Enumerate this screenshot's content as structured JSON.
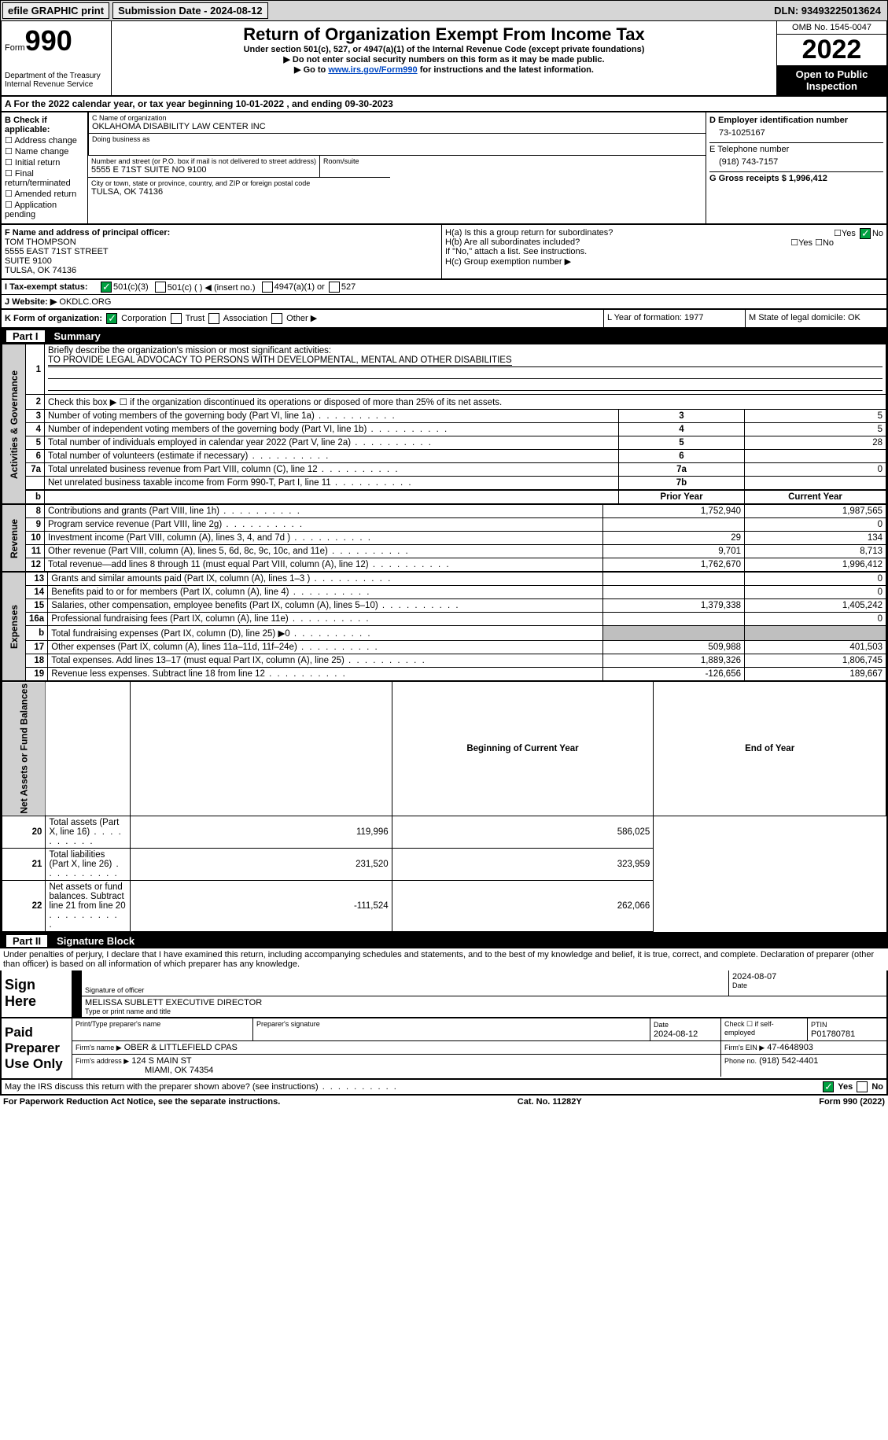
{
  "topbar": {
    "efile": "efile GRAPHIC print",
    "submission_label": "Submission Date - 2024-08-12",
    "dln_label": "DLN: 93493225013624"
  },
  "header": {
    "form_prefix": "Form",
    "form_num": "990",
    "dept": "Department of the Treasury Internal Revenue Service",
    "title": "Return of Organization Exempt From Income Tax",
    "sub": "Under section 501(c), 527, or 4947(a)(1) of the Internal Revenue Code (except private foundations)",
    "note1_pre": "▶ Do not enter social security numbers on this form as it may be made public.",
    "note2_pre": "▶ Go to ",
    "note2_link": "www.irs.gov/Form990",
    "note2_post": " for instructions and the latest information.",
    "omb": "OMB No. 1545-0047",
    "year": "2022",
    "otp": "Open to Public Inspection"
  },
  "rowA": "A For the 2022 calendar year, or tax year beginning 10-01-2022   , and ending 09-30-2023",
  "secB": {
    "hdr": "B Check if applicable:",
    "items": [
      "Address change",
      "Name change",
      "Initial return",
      "Final return/terminated",
      "Amended return",
      "Application pending"
    ],
    "c_name_label": "C Name of organization",
    "c_name": "OKLAHOMA DISABILITY LAW CENTER INC",
    "dba_label": "Doing business as",
    "addr_label": "Number and street (or P.O. box if mail is not delivered to street address)",
    "room_label": "Room/suite",
    "addr": "5555 E 71ST SUITE NO 9100",
    "city_label": "City or town, state or province, country, and ZIP or foreign postal code",
    "city": "TULSA, OK  74136",
    "d_label": "D Employer identification number",
    "d_val": "73-1025167",
    "e_label": "E Telephone number",
    "e_val": "(918) 743-7157",
    "g_label": "G Gross receipts $ 1,996,412"
  },
  "secF": {
    "f_label": "F  Name and address of principal officer:",
    "f_name": "TOM THOMPSON",
    "f_addr1": "5555 EAST 71ST STREET",
    "f_addr2": "SUITE 9100",
    "f_addr3": "TULSA, OK  74136",
    "ha": "H(a)  Is this a group return for subordinates?",
    "hb": "H(b)  Are all subordinates included?",
    "hnote": "If \"No,\" attach a list. See instructions.",
    "hc": "H(c)  Group exemption number ▶",
    "yes": "Yes",
    "no": "No"
  },
  "secI": {
    "label": "I    Tax-exempt status:",
    "o1": "501(c)(3)",
    "o2": "501(c) (  ) ◀ (insert no.)",
    "o3": "4947(a)(1) or",
    "o4": "527",
    "j_label": "J   Website: ▶",
    "j_val": "OKDLC.ORG"
  },
  "secK": {
    "k": "K Form of organization:",
    "corp": "Corporation",
    "trust": "Trust",
    "assoc": "Association",
    "other": "Other ▶",
    "l": "L Year of formation: 1977",
    "m": "M State of legal domicile: OK"
  },
  "part1": {
    "hdr_num": "Part I",
    "hdr": "Summary",
    "l1": "Briefly describe the organization's mission or most significant activities:",
    "l1a": "TO PROVIDE LEGAL ADVOCACY TO PERSONS WITH DEVELOPMENTAL, MENTAL AND OTHER DISABILITIES",
    "l2": "Check this box ▶ ☐  if the organization discontinued its operations or disposed of more than 25% of its net assets.",
    "sidebar_actgov": "Activities & Governance",
    "sidebar_rev": "Revenue",
    "sidebar_exp": "Expenses",
    "sidebar_net": "Net Assets or Fund Balances",
    "rows_ag": [
      {
        "n": "3",
        "d": "Number of voting members of the governing body (Part VI, line 1a)",
        "b": "3",
        "v": "5"
      },
      {
        "n": "4",
        "d": "Number of independent voting members of the governing body (Part VI, line 1b)",
        "b": "4",
        "v": "5"
      },
      {
        "n": "5",
        "d": "Total number of individuals employed in calendar year 2022 (Part V, line 2a)",
        "b": "5",
        "v": "28"
      },
      {
        "n": "6",
        "d": "Total number of volunteers (estimate if necessary)",
        "b": "6",
        "v": ""
      },
      {
        "n": "7a",
        "d": "Total unrelated business revenue from Part VIII, column (C), line 12",
        "b": "7a",
        "v": "0"
      },
      {
        "n": "",
        "d": "Net unrelated business taxable income from Form 990-T, Part I, line 11",
        "b": "7b",
        "v": ""
      }
    ],
    "prior_hdr": "Prior Year",
    "curr_hdr": "Current Year",
    "rows_rev": [
      {
        "n": "8",
        "d": "Contributions and grants (Part VIII, line 1h)",
        "p": "1,752,940",
        "c": "1,987,565"
      },
      {
        "n": "9",
        "d": "Program service revenue (Part VIII, line 2g)",
        "p": "",
        "c": "0"
      },
      {
        "n": "10",
        "d": "Investment income (Part VIII, column (A), lines 3, 4, and 7d )",
        "p": "29",
        "c": "134"
      },
      {
        "n": "11",
        "d": "Other revenue (Part VIII, column (A), lines 5, 6d, 8c, 9c, 10c, and 11e)",
        "p": "9,701",
        "c": "8,713"
      },
      {
        "n": "12",
        "d": "Total revenue—add lines 8 through 11 (must equal Part VIII, column (A), line 12)",
        "p": "1,762,670",
        "c": "1,996,412"
      }
    ],
    "rows_exp": [
      {
        "n": "13",
        "d": "Grants and similar amounts paid (Part IX, column (A), lines 1–3 )",
        "p": "",
        "c": "0"
      },
      {
        "n": "14",
        "d": "Benefits paid to or for members (Part IX, column (A), line 4)",
        "p": "",
        "c": "0"
      },
      {
        "n": "15",
        "d": "Salaries, other compensation, employee benefits (Part IX, column (A), lines 5–10)",
        "p": "1,379,338",
        "c": "1,405,242"
      },
      {
        "n": "16a",
        "d": "Professional fundraising fees (Part IX, column (A), line 11e)",
        "p": "",
        "c": "0"
      },
      {
        "n": "b",
        "d": "Total fundraising expenses (Part IX, column (D), line 25) ▶0",
        "p": "SHADE",
        "c": "SHADE"
      },
      {
        "n": "17",
        "d": "Other expenses (Part IX, column (A), lines 11a–11d, 11f–24e)",
        "p": "509,988",
        "c": "401,503"
      },
      {
        "n": "18",
        "d": "Total expenses. Add lines 13–17 (must equal Part IX, column (A), line 25)",
        "p": "1,889,326",
        "c": "1,806,745"
      },
      {
        "n": "19",
        "d": "Revenue less expenses. Subtract line 18 from line 12",
        "p": "-126,656",
        "c": "189,667"
      }
    ],
    "boy_hdr": "Beginning of Current Year",
    "eoy_hdr": "End of Year",
    "rows_net": [
      {
        "n": "20",
        "d": "Total assets (Part X, line 16)",
        "p": "119,996",
        "c": "586,025"
      },
      {
        "n": "21",
        "d": "Total liabilities (Part X, line 26)",
        "p": "231,520",
        "c": "323,959"
      },
      {
        "n": "22",
        "d": "Net assets or fund balances. Subtract line 21 from line 20",
        "p": "-111,524",
        "c": "262,066"
      }
    ]
  },
  "part2": {
    "hdr_num": "Part II",
    "hdr": "Signature Block",
    "declare": "Under penalties of perjury, I declare that I have examined this return, including accompanying schedules and statements, and to the best of my knowledge and belief, it is true, correct, and complete. Declaration of preparer (other than officer) is based on all information of which preparer has any knowledge.",
    "sign_here": "Sign Here",
    "sig_off": "Signature of officer",
    "sig_date": "2024-08-07",
    "date_l": "Date",
    "officer": "MELISSA SUBLETT  EXECUTIVE DIRECTOR",
    "type_name": "Type or print name and title",
    "paid": "Paid Preparer Use Only",
    "prep_name_l": "Print/Type preparer's name",
    "prep_sig_l": "Preparer's signature",
    "date2": "2024-08-12",
    "check_self": "Check ☐ if self-employed",
    "ptin_l": "PTIN",
    "ptin": "P01780781",
    "firm_l": "Firm's name    ▶",
    "firm": "OBER & LITTLEFIELD CPAS",
    "ein_l": "Firm's EIN ▶",
    "ein": "47-4648903",
    "addr_l": "Firm's address ▶",
    "addr": "124 S MAIN ST",
    "addr2": "MIAMI, OK  74354",
    "phone_l": "Phone no.",
    "phone": "(918) 542-4401",
    "may": "May the IRS discuss this return with the preparer shown above? (see instructions)",
    "paperwork": "For Paperwork Reduction Act Notice, see the separate instructions.",
    "cat": "Cat. No. 11282Y",
    "form": "Form 990 (2022)"
  },
  "colors": {
    "part_bg": "#000000",
    "check_green": "#00a040",
    "link": "#0047c2",
    "sidebar_bg": "#d0d0d0"
  }
}
